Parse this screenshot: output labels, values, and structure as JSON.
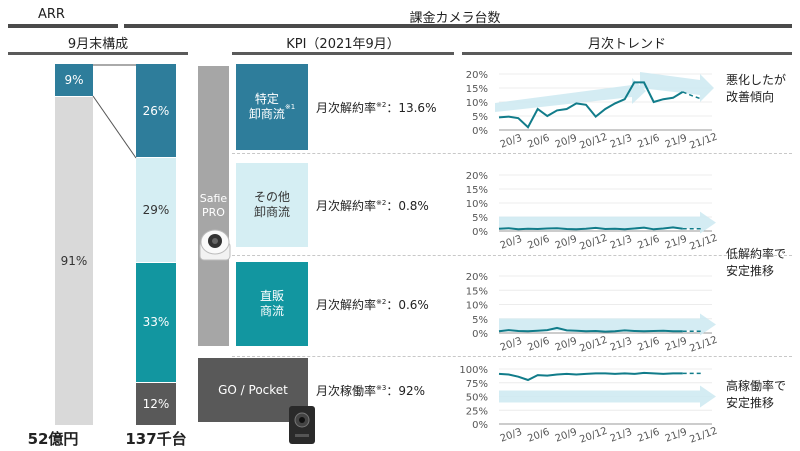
{
  "headers": {
    "arr": "ARR",
    "cameras": "課金カメラ台数",
    "composition": "9月末構成",
    "kpi": "KPI（2021年9月）",
    "trend": "月次トレンド"
  },
  "arr_bar": {
    "segments": [
      {
        "label": "9%",
        "value": 9,
        "color": "#2e7d9b"
      },
      {
        "label": "91%",
        "value": 91,
        "color": "#d9d9d9"
      }
    ],
    "total": "52億円"
  },
  "camera_bar": {
    "segments": [
      {
        "label": "26%",
        "value": 26,
        "color": "#2e7d9b"
      },
      {
        "label": "29%",
        "value": 29,
        "color": "#d5eef3"
      },
      {
        "label": "33%",
        "value": 33,
        "color": "#1296a0"
      },
      {
        "label": "12%",
        "value": 12,
        "color": "#595959"
      }
    ],
    "total": "137千台"
  },
  "products": {
    "safie_pro": "Safie\nPRO",
    "go_pocket": "GO / Pocket"
  },
  "kpis": [
    {
      "name": "特定\n卸商流",
      "note_mark": "※1",
      "metric": "月次解約率",
      "mark": "※2",
      "value": "：13.6%",
      "box_color": "#2e7d9b",
      "text_color": "#ffffff"
    },
    {
      "name": "その他\n卸商流",
      "note_mark": "",
      "metric": "月次解約率",
      "mark": "※2",
      "value": "：0.8%",
      "box_color": "#d5eef3",
      "text_color": "#333333"
    },
    {
      "name": "直販\n商流",
      "note_mark": "",
      "metric": "月次解約率",
      "mark": "※2",
      "value": "：0.6%",
      "box_color": "#1296a0",
      "text_color": "#ffffff"
    },
    {
      "name": "",
      "note_mark": "",
      "metric": "月次稼働率",
      "mark": "※3",
      "value": "：92%",
      "box_color": "#595959",
      "text_color": "#ffffff"
    }
  ],
  "notes": [
    "悪化したが\n改善傾向",
    "低解約率で\n安定推移",
    "高稼働率で\n安定推移"
  ],
  "chart_data": [
    {
      "type": "line",
      "x_ticks": [
        "20/3",
        "20/6",
        "20/9",
        "20/12",
        "21/3",
        "21/6",
        "21/9",
        "21/12"
      ],
      "y_ticks": [
        "20%",
        "15%",
        "10%",
        "5%",
        "0%"
      ],
      "ylim": [
        0,
        20
      ],
      "series": [
        {
          "values": [
            4.5,
            4.8,
            4.2,
            1.0,
            7.5,
            5.0,
            7.0,
            7.5,
            9.5,
            9.0,
            4.8,
            7.5,
            9.5,
            11.0,
            17.0,
            17.0,
            10.0,
            11.0,
            11.5,
            13.6
          ]
        }
      ],
      "forecast": [
        13.6,
        12.2,
        11.0
      ],
      "arrow": "up"
    },
    {
      "type": "line",
      "x_ticks": [
        "20/3",
        "20/6",
        "20/9",
        "20/12",
        "21/3",
        "21/6",
        "21/9",
        "21/12"
      ],
      "y_ticks": [
        "20%",
        "15%",
        "10%",
        "5%",
        "0%"
      ],
      "ylim": [
        0,
        20
      ],
      "series": [
        {
          "values": [
            0.8,
            1.0,
            0.6,
            0.8,
            0.7,
            0.9,
            1.0,
            0.7,
            0.6,
            0.8,
            1.1,
            0.7,
            0.8,
            0.6,
            0.9,
            1.2,
            0.6,
            0.9,
            1.3,
            0.8
          ]
        }
      ],
      "forecast": [
        0.8,
        0.8,
        0.8
      ],
      "arrow": "flat"
    },
    {
      "type": "line",
      "x_ticks": [
        "20/3",
        "20/6",
        "20/9",
        "20/12",
        "21/3",
        "21/6",
        "21/9",
        "21/12"
      ],
      "y_ticks": [
        "20%",
        "15%",
        "10%",
        "5%",
        "0%"
      ],
      "ylim": [
        0,
        20
      ],
      "series": [
        {
          "values": [
            0.6,
            1.0,
            0.7,
            0.6,
            0.8,
            1.0,
            1.8,
            0.9,
            0.8,
            0.6,
            0.7,
            0.5,
            0.6,
            0.9,
            0.7,
            0.6,
            0.7,
            0.8,
            0.6,
            0.6
          ]
        }
      ],
      "forecast": [
        0.6,
        0.6,
        0.6
      ],
      "arrow": "flat"
    },
    {
      "type": "line",
      "x_ticks": [
        "20/3",
        "20/6",
        "20/9",
        "20/12",
        "21/3",
        "21/6",
        "21/9",
        "21/12"
      ],
      "y_ticks": [
        "100%",
        "75%",
        "50%",
        "25%",
        "0%"
      ],
      "ylim": [
        0,
        100
      ],
      "series": [
        {
          "values": [
            91,
            90,
            86,
            80,
            89,
            88,
            90,
            91,
            90,
            91,
            92,
            92,
            91,
            92,
            91,
            93,
            92,
            91,
            92,
            92
          ]
        }
      ],
      "forecast": [
        92,
        92,
        92
      ],
      "arrow": "flat"
    }
  ]
}
